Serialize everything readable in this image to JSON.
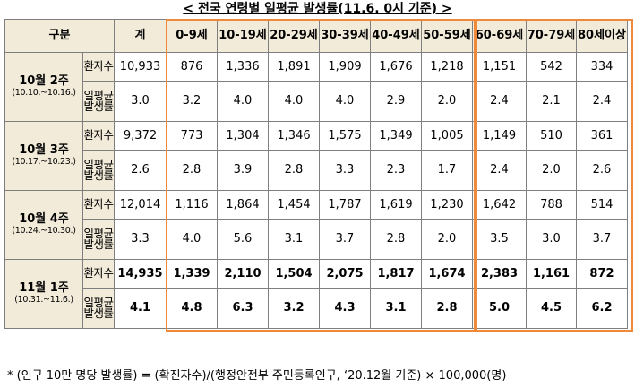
{
  "title": "< 전국 연령별 일평균 발생률(11.6. 0시 기준) >",
  "headers": [
    "구분",
    "계",
    "0-9세",
    "10-19세",
    "20-29세",
    "30-39세",
    "40-49세",
    "50-59세",
    "60-69세",
    "70-79세",
    "80세이상"
  ],
  "metric_labels": {
    "count": "환자수",
    "rate": "일평균발생률"
  },
  "weeks": [
    {
      "label": "10월 2주",
      "range": "(10.10.~10.16.)",
      "count": [
        "10,933",
        "876",
        "1,336",
        "1,891",
        "1,909",
        "1,676",
        "1,218",
        "1,151",
        "542",
        "334"
      ],
      "rate": [
        "3.0",
        "3.2",
        "4.0",
        "4.0",
        "4.0",
        "2.9",
        "2.0",
        "2.4",
        "2.1",
        "2.4"
      ]
    },
    {
      "label": "10월 3주",
      "range": "(10.17.~10.23.)",
      "count": [
        "9,372",
        "773",
        "1,304",
        "1,346",
        "1,575",
        "1,349",
        "1,005",
        "1,149",
        "510",
        "361"
      ],
      "rate": [
        "2.6",
        "2.8",
        "3.9",
        "2.8",
        "3.3",
        "2.3",
        "1.7",
        "2.4",
        "2.0",
        "2.6"
      ]
    },
    {
      "label": "10월 4주",
      "range": "(10.24.~10.30.)",
      "count": [
        "12,014",
        "1,116",
        "1,864",
        "1,454",
        "1,787",
        "1,619",
        "1,230",
        "1,642",
        "788",
        "514"
      ],
      "rate": [
        "3.3",
        "4.0",
        "5.6",
        "3.1",
        "3.7",
        "2.8",
        "2.0",
        "3.5",
        "3.0",
        "3.7"
      ]
    },
    {
      "label": "11월 1주",
      "range": "(10.31.~11.6.)",
      "count": [
        "14,935",
        "1,339",
        "2,110",
        "1,504",
        "2,075",
        "1,817",
        "1,674",
        "2,383",
        "1,161",
        "872"
      ],
      "rate": [
        "4.1",
        "4.8",
        "6.3",
        "3.2",
        "4.3",
        "3.1",
        "2.8",
        "5.0",
        "4.5",
        "6.2"
      ]
    }
  ],
  "footnote": "* (인구 10만 명당 발생률) = (확진자수)/(행정안전부 주민등록인구, ‘20.12월 기준) × 100,000(명)",
  "colors": {
    "header_bg": "#f2ebd9",
    "highlight": "#ee8a3a",
    "border": "#7f7f7f"
  }
}
